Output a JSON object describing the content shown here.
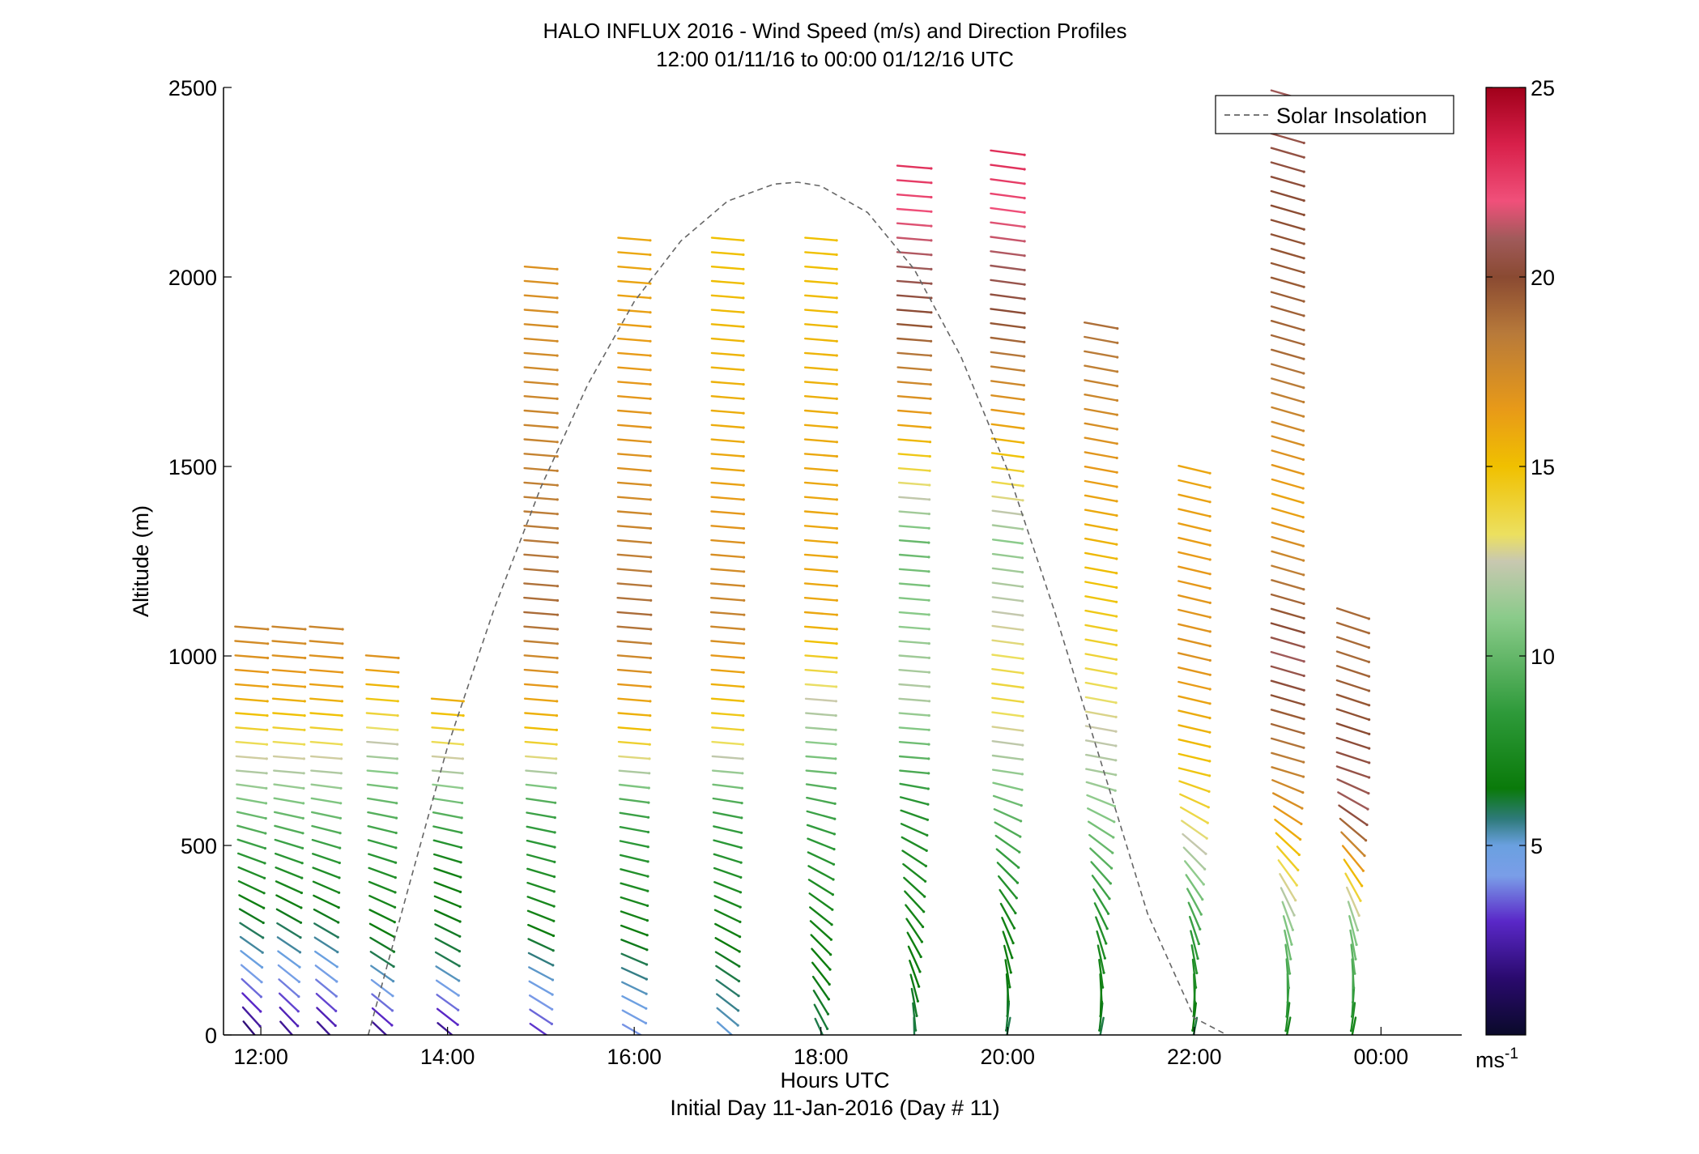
{
  "chart_data": {
    "type": "scatter",
    "title": "HALO INFLUX 2016 - Wind Speed (m/s) and Direction Profiles",
    "subtitle": "12:00 01/11/16 to 00:00 01/12/16  UTC",
    "xlabel": "Hours UTC",
    "xlabel2": "Initial Day 11-Jan-2016 (Day # 11)",
    "ylabel": "Altitude (m)",
    "xlim": [
      11.6,
      24.7
    ],
    "ylim": [
      0,
      2500
    ],
    "x_ticks": [
      12,
      14,
      16,
      18,
      20,
      22,
      24
    ],
    "x_tick_labels": [
      "12:00",
      "14:00",
      "16:00",
      "18:00",
      "20:00",
      "22:00",
      "00:00"
    ],
    "y_ticks": [
      0,
      500,
      1000,
      1500,
      2000,
      2500
    ],
    "y_tick_labels": [
      "0",
      "500",
      "1000",
      "1500",
      "2000",
      "2500"
    ],
    "colorbar": {
      "min": 0,
      "max": 25,
      "ticks": [
        5,
        10,
        15,
        20,
        25
      ],
      "tick_labels": [
        "5",
        "10",
        "15",
        "20",
        "25"
      ],
      "unit": "ms-1",
      "unit_base": "ms",
      "unit_sup": "-1"
    },
    "legend": {
      "position": "top-right",
      "entries": [
        {
          "label": "Solar Insolation",
          "style": "dashed",
          "color": "#777777"
        }
      ]
    },
    "solar_insolation": {
      "x": [
        13.15,
        13.6,
        14.0,
        14.5,
        15.0,
        15.5,
        16.0,
        16.5,
        17.0,
        17.5,
        17.75,
        18.0,
        18.5,
        19.0,
        19.5,
        20.0,
        20.5,
        21.0,
        21.5,
        22.0,
        22.35
      ],
      "y": [
        0,
        405,
        760,
        1125,
        1445,
        1715,
        1935,
        2095,
        2200,
        2245,
        2250,
        2240,
        2170,
        2020,
        1790,
        1490,
        1120,
        720,
        320,
        45,
        0
      ]
    },
    "wind_profiles": {
      "note": "Altitude profiles of wind barbs; wind speed (m/s) at key altitudes per profile column",
      "columns": [
        {
          "hour": 11.9,
          "top": 1100,
          "speeds": [
            {
              "z": 0,
              "s": 1.5
            },
            {
              "z": 200,
              "s": 5
            },
            {
              "z": 450,
              "s": 8
            },
            {
              "z": 700,
              "s": 12
            },
            {
              "z": 900,
              "s": 16
            },
            {
              "z": 1100,
              "s": 18
            }
          ]
        },
        {
          "hour": 12.3,
          "top": 1100,
          "speeds": [
            {
              "z": 0,
              "s": 2
            },
            {
              "z": 200,
              "s": 5
            },
            {
              "z": 450,
              "s": 8
            },
            {
              "z": 700,
              "s": 12
            },
            {
              "z": 900,
              "s": 16
            },
            {
              "z": 1100,
              "s": 18
            }
          ]
        },
        {
          "hour": 12.7,
          "top": 1100,
          "speeds": [
            {
              "z": 0,
              "s": 2
            },
            {
              "z": 200,
              "s": 5
            },
            {
              "z": 450,
              "s": 8
            },
            {
              "z": 700,
              "s": 12
            },
            {
              "z": 900,
              "s": 16
            },
            {
              "z": 1100,
              "s": 18
            }
          ]
        },
        {
          "hour": 13.3,
          "top": 1020,
          "speeds": [
            {
              "z": 0,
              "s": 2
            },
            {
              "z": 200,
              "s": 6
            },
            {
              "z": 450,
              "s": 8
            },
            {
              "z": 700,
              "s": 11
            },
            {
              "z": 900,
              "s": 15
            },
            {
              "z": 1000,
              "s": 17
            }
          ]
        },
        {
          "hour": 14.0,
          "top": 900,
          "speeds": [
            {
              "z": 0,
              "s": 2
            },
            {
              "z": 200,
              "s": 6
            },
            {
              "z": 450,
              "s": 7
            },
            {
              "z": 650,
              "s": 11
            },
            {
              "z": 900,
              "s": 16
            }
          ]
        },
        {
          "hour": 15.0,
          "top": 2050,
          "speeds": [
            {
              "z": 0,
              "s": 3
            },
            {
              "z": 300,
              "s": 7
            },
            {
              "z": 600,
              "s": 9
            },
            {
              "z": 800,
              "s": 15
            },
            {
              "z": 1100,
              "s": 19
            },
            {
              "z": 1500,
              "s": 18
            },
            {
              "z": 2050,
              "s": 17
            }
          ]
        },
        {
          "hour": 16.0,
          "top": 2100,
          "speeds": [
            {
              "z": 0,
              "s": 4
            },
            {
              "z": 300,
              "s": 7
            },
            {
              "z": 600,
              "s": 9
            },
            {
              "z": 800,
              "s": 15
            },
            {
              "z": 1100,
              "s": 19
            },
            {
              "z": 1500,
              "s": 17
            },
            {
              "z": 2050,
              "s": 16
            }
          ]
        },
        {
          "hour": 17.0,
          "top": 2100,
          "speeds": [
            {
              "z": 0,
              "s": 5
            },
            {
              "z": 300,
              "s": 7
            },
            {
              "z": 600,
              "s": 9
            },
            {
              "z": 800,
              "s": 14
            },
            {
              "z": 1100,
              "s": 18
            },
            {
              "z": 1500,
              "s": 16
            },
            {
              "z": 2050,
              "s": 15
            }
          ]
        },
        {
          "hour": 18.0,
          "top": 2100,
          "speeds": [
            {
              "z": 0,
              "s": 6
            },
            {
              "z": 300,
              "s": 7
            },
            {
              "z": 600,
              "s": 9
            },
            {
              "z": 850,
              "s": 12
            },
            {
              "z": 1100,
              "s": 16
            },
            {
              "z": 1500,
              "s": 16
            },
            {
              "z": 2050,
              "s": 15
            }
          ]
        },
        {
          "hour": 19.0,
          "top": 2300,
          "speeds": [
            {
              "z": 0,
              "s": 6
            },
            {
              "z": 300,
              "s": 7
            },
            {
              "z": 600,
              "s": 8
            },
            {
              "z": 900,
              "s": 12
            },
            {
              "z": 1300,
              "s": 10
            },
            {
              "z": 1600,
              "s": 16
            },
            {
              "z": 1900,
              "s": 20
            },
            {
              "z": 2300,
              "s": 23
            }
          ]
        },
        {
          "hour": 20.0,
          "top": 2350,
          "speeds": [
            {
              "z": 0,
              "s": 6
            },
            {
              "z": 300,
              "s": 7
            },
            {
              "z": 600,
              "s": 10
            },
            {
              "z": 900,
              "s": 14
            },
            {
              "z": 1300,
              "s": 11
            },
            {
              "z": 1600,
              "s": 16
            },
            {
              "z": 1900,
              "s": 20
            },
            {
              "z": 2300,
              "s": 23
            }
          ]
        },
        {
          "hour": 21.0,
          "top": 1900,
          "speeds": [
            {
              "z": 0,
              "s": 6
            },
            {
              "z": 300,
              "s": 8
            },
            {
              "z": 600,
              "s": 11
            },
            {
              "z": 1000,
              "s": 14
            },
            {
              "z": 1400,
              "s": 16
            },
            {
              "z": 1900,
              "s": 19
            }
          ]
        },
        {
          "hour": 22.0,
          "top": 1500,
          "speeds": [
            {
              "z": 0,
              "s": 6
            },
            {
              "z": 300,
              "s": 9
            },
            {
              "z": 600,
              "s": 14
            },
            {
              "z": 1000,
              "s": 17
            },
            {
              "z": 1500,
              "s": 16
            }
          ]
        },
        {
          "hour": 23.0,
          "top": 2500,
          "speeds": [
            {
              "z": 0,
              "s": 7
            },
            {
              "z": 300,
              "s": 11
            },
            {
              "z": 600,
              "s": 17
            },
            {
              "z": 1000,
              "s": 21
            },
            {
              "z": 1400,
              "s": 16
            },
            {
              "z": 1800,
              "s": 19
            },
            {
              "z": 2200,
              "s": 20
            },
            {
              "z": 2500,
              "s": 21
            }
          ]
        },
        {
          "hour": 23.7,
          "top": 1130,
          "speeds": [
            {
              "z": 0,
              "s": 7
            },
            {
              "z": 300,
              "s": 11
            },
            {
              "z": 600,
              "s": 21
            },
            {
              "z": 1000,
              "s": 19
            },
            {
              "z": 1130,
              "s": 19
            }
          ]
        }
      ]
    }
  }
}
